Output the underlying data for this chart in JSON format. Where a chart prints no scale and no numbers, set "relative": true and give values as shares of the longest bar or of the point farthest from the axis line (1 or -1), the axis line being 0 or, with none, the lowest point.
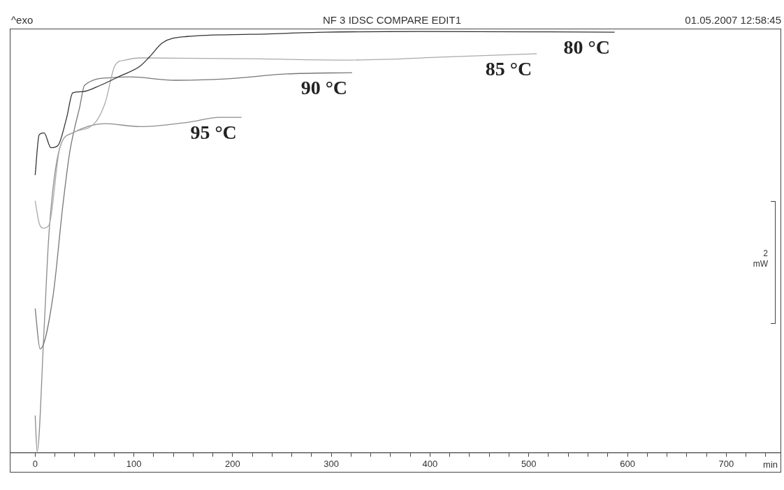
{
  "chart_data": {
    "type": "line",
    "title": "NF 3 IDSC COMPARE EDIT1",
    "xlabel": "min",
    "relative": true,
    "legend": false,
    "grid": false,
    "marker": "none",
    "annotations": [
      "^exo",
      "01.05.2007 12:58:45",
      "2 mW"
    ],
    "xlim": [
      -25,
      755
    ],
    "xticks": [
      0,
      {
        "value": 20,
        "label": null
      },
      {
        "value": 40,
        "label": null
      },
      {
        "value": 60,
        "label": null
      },
      {
        "value": 80,
        "label": null
      },
      100,
      {
        "value": 120,
        "label": null
      },
      {
        "value": 140,
        "label": null
      },
      {
        "value": 160,
        "label": null
      },
      {
        "value": 180,
        "label": null
      },
      200,
      {
        "value": 220,
        "label": null
      },
      {
        "value": 240,
        "label": null
      },
      {
        "value": 260,
        "label": null
      },
      {
        "value": 280,
        "label": null
      },
      300,
      {
        "value": 320,
        "label": null
      },
      {
        "value": 340,
        "label": null
      },
      {
        "value": 360,
        "label": null
      },
      {
        "value": 380,
        "label": null
      },
      400,
      {
        "value": 420,
        "label": null
      },
      {
        "value": 440,
        "label": null
      },
      {
        "value": 460,
        "label": null
      },
      {
        "value": 480,
        "label": null
      },
      500,
      {
        "value": 520,
        "label": null
      },
      {
        "value": 540,
        "label": null
      },
      {
        "value": 560,
        "label": null
      },
      {
        "value": 580,
        "label": null
      },
      600,
      {
        "value": 620,
        "label": null
      },
      {
        "value": 640,
        "label": null
      },
      {
        "value": 660,
        "label": null
      },
      {
        "value": 680,
        "label": null
      },
      700,
      {
        "value": 720,
        "label": null
      },
      {
        "value": 740,
        "label": null
      }
    ],
    "series": [
      {
        "name": "80 °C",
        "color": "#333333",
        "x": [
          0,
          4,
          9,
          16,
          23,
          32,
          38,
          48,
          66,
          86,
          106,
          116,
          129,
          154,
          217,
          293,
          389,
          587
        ],
        "values": [
          0.659,
          0.754,
          0.759,
          0.724,
          0.729,
          0.796,
          0.854,
          0.857,
          0.872,
          0.894,
          0.917,
          0.94,
          0.973,
          0.988,
          0.993,
          0.998,
          1,
          0.998
        ]
      },
      {
        "name": "85 °C",
        "color": "#aaaaaa",
        "x": [
          0,
          4,
          8,
          14,
          25,
          38,
          61,
          71,
          81,
          91,
          106,
          217,
          318,
          424,
          508
        ],
        "values": [
          0.598,
          0.545,
          0.533,
          0.54,
          0.724,
          0.759,
          0.784,
          0.831,
          0.92,
          0.932,
          0.937,
          0.935,
          0.932,
          0.94,
          0.947
        ]
      },
      {
        "name": "90 °C",
        "color": "#777777",
        "x": [
          0,
          5,
          18,
          28,
          35,
          40,
          45,
          50,
          76,
          96,
          141,
          192,
          255,
          321
        ],
        "values": [
          0.342,
          0.246,
          0.37,
          0.586,
          0.713,
          0.771,
          0.819,
          0.872,
          0.89,
          0.892,
          0.884,
          0.887,
          0.899,
          0.902
        ]
      },
      {
        "name": "95 °C",
        "color": "#8c8c8c",
        "x": [
          0,
          2,
          9,
          14,
          25,
          38,
          71,
          106,
          154,
          187,
          209
        ],
        "values": [
          0.088,
          0.002,
          0.292,
          0.52,
          0.724,
          0.759,
          0.781,
          0.774,
          0.784,
          0.796,
          0.796
        ]
      }
    ]
  }
}
